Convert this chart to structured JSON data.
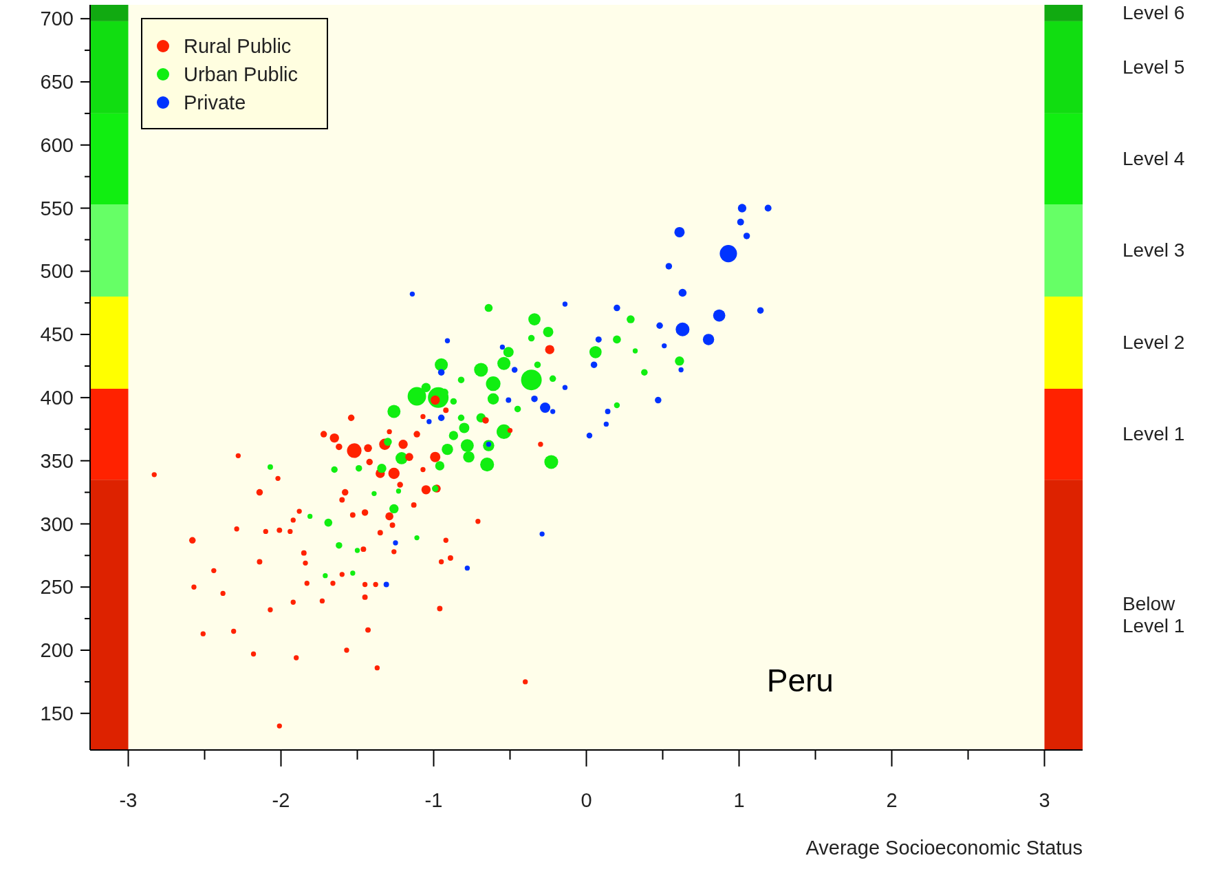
{
  "chart_data": {
    "type": "bubble",
    "xlabel": "Average Socioeconomic Status",
    "annotations": [
      "Peru"
    ],
    "legend": "top left",
    "marker": "circle",
    "xlim": [
      -3.25,
      3.25
    ],
    "ylim": [
      121,
      711
    ],
    "xticks": [
      -3,
      {
        "value": -2.5,
        "label": null
      },
      -2,
      {
        "value": -1.5,
        "label": null
      },
      -1,
      {
        "value": -0.5,
        "label": null
      },
      0,
      {
        "value": 0.5,
        "label": null
      },
      1,
      {
        "value": 1.5,
        "label": null
      },
      2,
      {
        "value": 2.5,
        "label": null
      },
      3
    ],
    "yticks": [
      150,
      {
        "value": 175,
        "label": null
      },
      200,
      {
        "value": 225,
        "label": null
      },
      250,
      {
        "value": 275,
        "label": null
      },
      300,
      {
        "value": 325,
        "label": null
      },
      350,
      {
        "value": 375,
        "label": null
      },
      400,
      {
        "value": 425,
        "label": null
      },
      450,
      {
        "value": 475,
        "label": null
      },
      500,
      {
        "value": 525,
        "label": null
      },
      550,
      {
        "value": 575,
        "label": null
      },
      600,
      {
        "value": 625,
        "label": null
      },
      650,
      {
        "value": 675,
        "label": null
      },
      700
    ],
    "bands": [
      {
        "axis": "y",
        "from": 121,
        "to": 335,
        "label": "Below Level 1",
        "color": "#dd2200"
      },
      {
        "axis": "y",
        "from": 335,
        "to": 407,
        "label": "Level 1",
        "color": "#ff2200"
      },
      {
        "axis": "y",
        "from": 407,
        "to": 480,
        "label": "Level 2",
        "color": "#ffff00"
      },
      {
        "axis": "y",
        "from": 480,
        "to": 553,
        "label": "Level 3",
        "color": "#66ff66"
      },
      {
        "axis": "y",
        "from": 553,
        "to": 625,
        "label": "Level 4",
        "color": "#11ee11"
      },
      {
        "axis": "y",
        "from": 625,
        "to": 698,
        "label": "Level 5",
        "color": "#11dd11"
      },
      {
        "axis": "y",
        "from": 698,
        "to": 711,
        "label": "Level 6",
        "color": "#11aa11"
      }
    ],
    "series": [
      {
        "name": "Rural Public",
        "color": "#ff2200",
        "x": [
          -0.24,
          -0.99,
          -0.66,
          -0.92,
          -1.54,
          -1.72,
          -1.65,
          -1.62,
          -1.52,
          -1.43,
          -1.32,
          -1.2,
          -1.29,
          -1.11,
          -1.07,
          -1.16,
          -0.99,
          -1.42,
          -1.35,
          -1.26,
          -1.22,
          -1.07,
          -1.05,
          -0.98,
          -1.58,
          -1.6,
          -1.45,
          -1.53,
          -1.29,
          -1.27,
          -1.35,
          -1.13,
          -0.5,
          -0.3,
          -2.14,
          -1.92,
          -2.01,
          -2.1,
          -1.94,
          -1.85,
          -1.84,
          -2.14,
          -2.58,
          -2.44,
          -2.38,
          -2.57,
          -2.28,
          -2.29,
          -2.02,
          -2.83,
          -1.88,
          -1.83,
          -1.73,
          -1.66,
          -1.6,
          -2.07,
          -1.92,
          -2.51,
          -2.31,
          -2.18,
          -1.9,
          -1.57,
          -1.43,
          -1.45,
          -1.45,
          -1.37,
          -2.01,
          -0.96,
          -0.89,
          -0.92,
          -1.26,
          -1.46,
          -1.38,
          -0.71,
          -0.4,
          -0.95
        ],
        "values": [
          438,
          398,
          382,
          390,
          384,
          371,
          368,
          361,
          358,
          360,
          363,
          363,
          373,
          371,
          385,
          353,
          353,
          349,
          340,
          340,
          331,
          343,
          327,
          328,
          325,
          319,
          309,
          307,
          306,
          299,
          293,
          315,
          374,
          363,
          325,
          303,
          295,
          294,
          294,
          277,
          269,
          270,
          287,
          263,
          245,
          250,
          354,
          296,
          336,
          339,
          310,
          253,
          239,
          253,
          260,
          232,
          238,
          213,
          215,
          197,
          194,
          200,
          216,
          242,
          252,
          186,
          140,
          233,
          273,
          287,
          278,
          280,
          252,
          302,
          175,
          270
        ],
        "sizes": [
          0.2,
          0.2,
          0.1,
          0.07,
          0.1,
          0.1,
          0.2,
          0.1,
          0.5,
          0.15,
          0.3,
          0.2,
          0.06,
          0.1,
          0.06,
          0.15,
          0.25,
          0.1,
          0.2,
          0.3,
          0.08,
          0.06,
          0.2,
          0.15,
          0.1,
          0.07,
          0.1,
          0.07,
          0.15,
          0.07,
          0.07,
          0.07,
          0.06,
          0.06,
          0.1,
          0.06,
          0.07,
          0.06,
          0.06,
          0.07,
          0.06,
          0.07,
          0.1,
          0.06,
          0.06,
          0.06,
          0.06,
          0.06,
          0.06,
          0.06,
          0.06,
          0.06,
          0.06,
          0.06,
          0.06,
          0.06,
          0.06,
          0.06,
          0.06,
          0.06,
          0.06,
          0.06,
          0.07,
          0.07,
          0.06,
          0.06,
          0.06,
          0.07,
          0.07,
          0.06,
          0.06,
          0.07,
          0.06,
          0.06,
          0.06,
          0.06
        ]
      },
      {
        "name": "Urban Public",
        "color": "#11ee11",
        "x": [
          -0.64,
          -0.34,
          -0.25,
          -0.36,
          -0.51,
          -0.54,
          -0.69,
          -0.95,
          -0.61,
          -0.36,
          -0.22,
          -0.32,
          -0.61,
          -0.45,
          -0.82,
          -0.93,
          -1.05,
          -1.11,
          -0.97,
          -1.26,
          -0.87,
          -0.82,
          -0.69,
          -0.8,
          -0.87,
          -0.54,
          -0.64,
          -0.78,
          -0.91,
          -0.77,
          -0.65,
          -0.96,
          -0.23,
          -1.3,
          -1.21,
          -1.34,
          -1.49,
          -1.65,
          -2.07,
          -1.23,
          -1.39,
          -0.99,
          -1.26,
          -1.69,
          -1.81,
          -1.62,
          -1.5,
          -1.11,
          -1.71,
          -1.53,
          0.06,
          0.2,
          0.29,
          0.38,
          0.2,
          0.61,
          0.32
        ],
        "values": [
          471,
          462,
          452,
          447,
          436,
          427,
          422,
          426,
          411,
          414,
          415,
          426,
          399,
          391,
          414,
          404,
          408,
          401,
          400,
          389,
          397,
          384,
          384,
          376,
          370,
          373,
          362,
          362,
          359,
          353,
          347,
          346,
          349,
          365,
          352,
          344,
          344,
          343,
          345,
          326,
          324,
          328,
          312,
          301,
          306,
          283,
          279,
          289,
          259,
          261,
          436,
          446,
          462,
          420,
          394,
          429,
          437
        ],
        "sizes": [
          0.15,
          0.35,
          0.25,
          0.1,
          0.25,
          0.4,
          0.45,
          0.4,
          0.5,
          1,
          0.1,
          0.1,
          0.3,
          0.1,
          0.1,
          0.15,
          0.2,
          0.8,
          1,
          0.4,
          0.1,
          0.1,
          0.2,
          0.25,
          0.2,
          0.5,
          0.3,
          0.4,
          0.3,
          0.3,
          0.45,
          0.2,
          0.45,
          0.15,
          0.35,
          0.2,
          0.1,
          0.1,
          0.07,
          0.06,
          0.06,
          0.1,
          0.2,
          0.15,
          0.06,
          0.1,
          0.06,
          0.06,
          0.06,
          0.06,
          0.35,
          0.15,
          0.15,
          0.1,
          0.08,
          0.2,
          0.06
        ]
      },
      {
        "name": "Private",
        "color": "#0033ff",
        "x": [
          1.19,
          1.02,
          1.01,
          1.05,
          0.61,
          0.54,
          0.93,
          0.63,
          0.87,
          0.63,
          0.8,
          1.14,
          0.48,
          0.51,
          0.62,
          0.47,
          0.2,
          0.08,
          0.05,
          0.02,
          0.14,
          0.13,
          -0.14,
          -1.14,
          -0.91,
          -0.95,
          -0.95,
          -1.03,
          -0.47,
          -0.51,
          -0.34,
          -0.27,
          -0.22,
          -0.64,
          -0.29,
          -0.78,
          -1.31,
          -1.25,
          -0.55,
          -0.14
        ],
        "values": [
          550,
          550,
          539,
          528,
          531,
          504,
          514,
          483,
          465,
          454,
          446,
          469,
          457,
          441,
          422,
          398,
          471,
          446,
          426,
          370,
          389,
          379,
          474,
          482,
          445,
          420,
          384,
          381,
          422,
          398,
          399,
          392,
          389,
          363,
          292,
          265,
          252,
          285,
          440,
          408
        ],
        "sizes": [
          0.11,
          0.17,
          0.11,
          0.1,
          0.25,
          0.1,
          0.7,
          0.15,
          0.35,
          0.45,
          0.3,
          0.1,
          0.1,
          0.06,
          0.06,
          0.1,
          0.1,
          0.09,
          0.1,
          0.08,
          0.07,
          0.06,
          0.06,
          0.06,
          0.06,
          0.1,
          0.1,
          0.06,
          0.08,
          0.07,
          0.1,
          0.25,
          0.06,
          0.06,
          0.06,
          0.06,
          0.07,
          0.06,
          0.06,
          0.06
        ]
      }
    ]
  }
}
